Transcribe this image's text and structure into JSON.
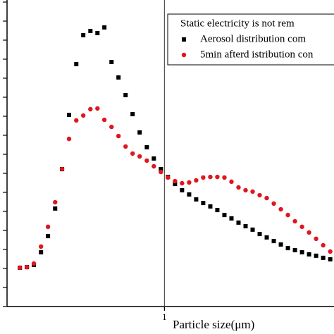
{
  "chart_data": {
    "type": "scatter",
    "xlabel": "Particle size(μm)",
    "xscale": "log",
    "xlim": [
      0.2,
      5.66
    ],
    "xticks": [
      1
    ],
    "ylim": [
      0,
      16.11
    ],
    "yticks": [
      0,
      1,
      2,
      3,
      4,
      5,
      6,
      7,
      8,
      9,
      10,
      11,
      12,
      13,
      14,
      15,
      16
    ],
    "vline": 1,
    "legend_title": "Static electricity is not rem",
    "legend_loc": "upper right",
    "series": [
      {
        "name": "Aerosol distribution com",
        "color": "#000000",
        "marker": "square",
        "x": [
          0.228,
          0.245,
          0.263,
          0.283,
          0.304,
          0.327,
          0.351,
          0.377,
          0.406,
          0.436,
          0.469,
          0.504,
          0.541,
          0.582,
          0.625,
          0.672,
          0.722,
          0.776,
          0.835,
          0.897,
          0.964,
          1.036,
          1.114,
          1.197,
          1.287,
          1.383,
          1.486,
          1.598,
          1.717,
          1.846,
          1.984,
          2.132,
          2.292,
          2.463,
          2.647,
          2.845,
          3.058,
          3.287,
          3.533,
          3.797,
          4.081,
          4.386,
          4.714,
          5.067,
          5.446
        ],
        "values": [
          2.04,
          2.07,
          2.19,
          2.85,
          3.7,
          5.15,
          7.22,
          10.07,
          12.74,
          14.26,
          14.48,
          14.37,
          14.67,
          12.85,
          12.04,
          11.11,
          10.11,
          9.15,
          8.37,
          7.78,
          7.22,
          6.81,
          6.44,
          6.11,
          5.89,
          5.63,
          5.44,
          5.26,
          5.07,
          4.81,
          4.63,
          4.41,
          4.22,
          4.04,
          3.81,
          3.63,
          3.44,
          3.26,
          3.07,
          2.96,
          2.85,
          2.74,
          2.67,
          2.56,
          2.48
        ]
      },
      {
        "name": "5min afterd istribution con",
        "color": "#e0161c",
        "marker": "circle",
        "x": [
          0.228,
          0.245,
          0.263,
          0.283,
          0.304,
          0.327,
          0.351,
          0.377,
          0.406,
          0.436,
          0.469,
          0.504,
          0.541,
          0.582,
          0.625,
          0.672,
          0.722,
          0.776,
          0.835,
          0.897,
          0.964,
          1.036,
          1.114,
          1.197,
          1.287,
          1.383,
          1.486,
          1.598,
          1.717,
          1.846,
          1.984,
          2.132,
          2.292,
          2.463,
          2.647,
          2.845,
          3.058,
          3.287,
          3.533,
          3.797,
          4.081,
          4.386,
          4.714,
          5.067,
          5.446
        ],
        "values": [
          2.04,
          2.07,
          2.26,
          3.15,
          4.19,
          5.48,
          7.22,
          8.81,
          9.78,
          10.04,
          10.37,
          10.41,
          9.81,
          9.44,
          8.96,
          8.41,
          8.04,
          7.89,
          7.67,
          7.37,
          7.07,
          6.78,
          6.59,
          6.48,
          6.52,
          6.63,
          6.78,
          6.81,
          6.81,
          6.78,
          6.56,
          6.26,
          6.11,
          6.04,
          5.85,
          5.7,
          5.41,
          5.11,
          4.81,
          4.48,
          4.19,
          3.89,
          3.56,
          3.22,
          2.89
        ]
      }
    ]
  }
}
